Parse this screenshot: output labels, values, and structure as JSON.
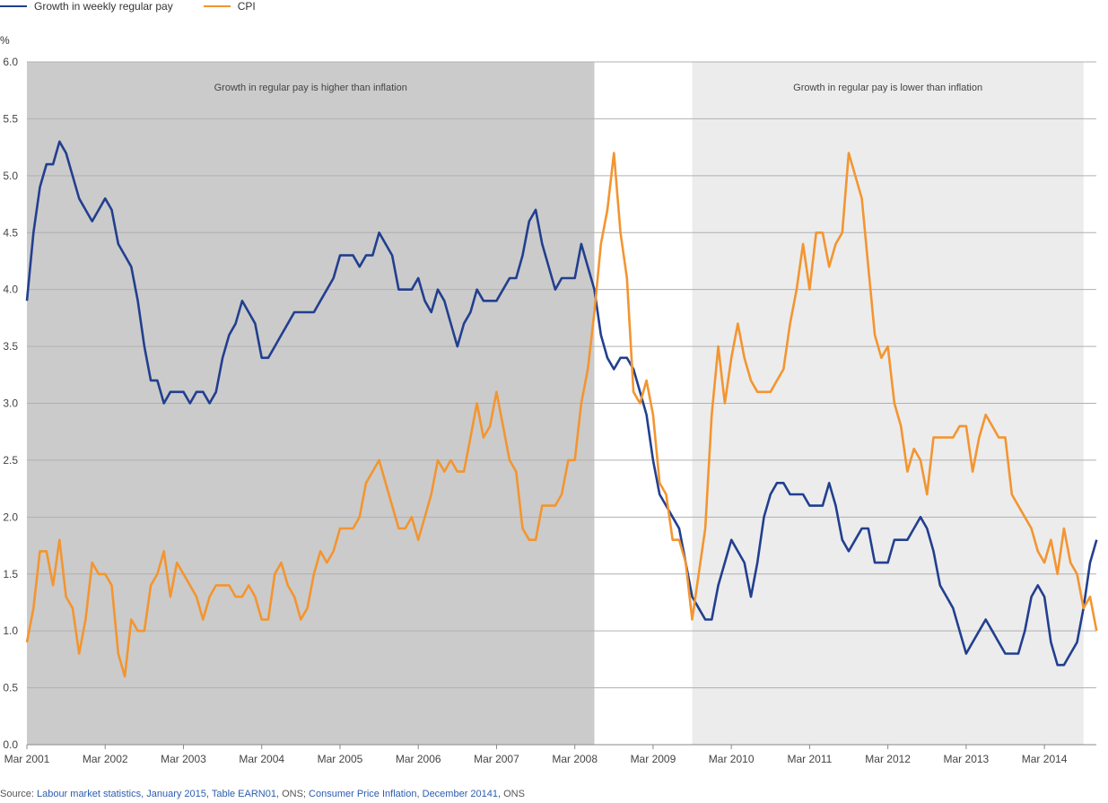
{
  "chart_data": {
    "type": "line",
    "title": "",
    "ylabel": "%",
    "xlabel": "",
    "ylim": [
      0,
      6
    ],
    "yticks": [
      "0.0",
      "0.5",
      "1.0",
      "1.5",
      "2.0",
      "2.5",
      "3.0",
      "3.5",
      "4.0",
      "4.5",
      "5.0",
      "5.5",
      "6.0"
    ],
    "x_start": "Mar 2001",
    "frequency": "monthly",
    "xticks": [
      "Mar 2001",
      "Mar 2002",
      "Mar 2003",
      "Mar 2004",
      "Mar 2005",
      "Mar 2006",
      "Mar 2007",
      "Mar 2008",
      "Mar 2009",
      "Mar 2010",
      "Mar 2011",
      "Mar 2012",
      "Mar 2013",
      "Mar 2014"
    ],
    "grid": true,
    "legend_position": "top-left",
    "series": [
      {
        "name": "Growth in weekly regular pay",
        "color": "#223f8f",
        "values": [
          3.9,
          4.5,
          4.9,
          5.1,
          5.1,
          5.3,
          5.2,
          5.0,
          4.8,
          4.7,
          4.6,
          4.7,
          4.8,
          4.7,
          4.4,
          4.3,
          4.2,
          3.9,
          3.5,
          3.2,
          3.2,
          3.0,
          3.1,
          3.1,
          3.1,
          3.0,
          3.1,
          3.1,
          3.0,
          3.1,
          3.4,
          3.6,
          3.7,
          3.9,
          3.8,
          3.7,
          3.4,
          3.4,
          3.5,
          3.6,
          3.7,
          3.8,
          3.8,
          3.8,
          3.8,
          3.9,
          4.0,
          4.1,
          4.3,
          4.3,
          4.3,
          4.2,
          4.3,
          4.3,
          4.5,
          4.4,
          4.3,
          4.0,
          4.0,
          4.0,
          4.1,
          3.9,
          3.8,
          4.0,
          3.9,
          3.7,
          3.5,
          3.7,
          3.8,
          4.0,
          3.9,
          3.9,
          3.9,
          4.0,
          4.1,
          4.1,
          4.3,
          4.6,
          4.7,
          4.4,
          4.2,
          4.0,
          4.1,
          4.1,
          4.1,
          4.4,
          4.2,
          4.0,
          3.6,
          3.4,
          3.3,
          3.4,
          3.4,
          3.3,
          3.1,
          2.9,
          2.5,
          2.2,
          2.1,
          2.0,
          1.9,
          1.6,
          1.3,
          1.2,
          1.1,
          1.1,
          1.4,
          1.6,
          1.8,
          1.7,
          1.6,
          1.3,
          1.6,
          2.0,
          2.2,
          2.3,
          2.3,
          2.2,
          2.2,
          2.2,
          2.1,
          2.1,
          2.1,
          2.3,
          2.1,
          1.8,
          1.7,
          1.8,
          1.9,
          1.9,
          1.6,
          1.6,
          1.6,
          1.8,
          1.8,
          1.8,
          1.9,
          2.0,
          1.9,
          1.7,
          1.4,
          1.3,
          1.2,
          1.0,
          0.8,
          0.9,
          1.0,
          1.1,
          1.0,
          0.9,
          0.8,
          0.8,
          0.8,
          1.0,
          1.3,
          1.4,
          1.3,
          0.9,
          0.7,
          0.7,
          0.8,
          0.9,
          1.2,
          1.6,
          1.8
        ]
      },
      {
        "name": "CPI",
        "color": "#f39530",
        "values": [
          0.9,
          1.2,
          1.7,
          1.7,
          1.4,
          1.8,
          1.3,
          1.2,
          0.8,
          1.1,
          1.6,
          1.5,
          1.5,
          1.4,
          0.8,
          0.6,
          1.1,
          1.0,
          1.0,
          1.4,
          1.5,
          1.7,
          1.3,
          1.6,
          1.5,
          1.4,
          1.3,
          1.1,
          1.3,
          1.4,
          1.4,
          1.4,
          1.3,
          1.3,
          1.4,
          1.3,
          1.1,
          1.1,
          1.5,
          1.6,
          1.4,
          1.3,
          1.1,
          1.2,
          1.5,
          1.7,
          1.6,
          1.7,
          1.9,
          1.9,
          1.9,
          2.0,
          2.3,
          2.4,
          2.5,
          2.3,
          2.1,
          1.9,
          1.9,
          2.0,
          1.8,
          2.0,
          2.2,
          2.5,
          2.4,
          2.5,
          2.4,
          2.4,
          2.7,
          3.0,
          2.7,
          2.8,
          3.1,
          2.8,
          2.5,
          2.4,
          1.9,
          1.8,
          1.8,
          2.1,
          2.1,
          2.1,
          2.2,
          2.5,
          2.5,
          3.0,
          3.3,
          3.8,
          4.4,
          4.7,
          5.2,
          4.5,
          4.1,
          3.1,
          3.0,
          3.2,
          2.9,
          2.3,
          2.2,
          1.8,
          1.8,
          1.6,
          1.1,
          1.5,
          1.9,
          2.9,
          3.5,
          3.0,
          3.4,
          3.7,
          3.4,
          3.2,
          3.1,
          3.1,
          3.1,
          3.2,
          3.3,
          3.7,
          4.0,
          4.4,
          4.0,
          4.5,
          4.5,
          4.2,
          4.4,
          4.5,
          5.2,
          5.0,
          4.8,
          4.2,
          3.6,
          3.4,
          3.5,
          3.0,
          2.8,
          2.4,
          2.6,
          2.5,
          2.2,
          2.7,
          2.7,
          2.7,
          2.7,
          2.8,
          2.8,
          2.4,
          2.7,
          2.9,
          2.8,
          2.7,
          2.7,
          2.2,
          2.1,
          2.0,
          1.9,
          1.7,
          1.6,
          1.8,
          1.5,
          1.9,
          1.6,
          1.5,
          1.2,
          1.3,
          1.0
        ]
      }
    ],
    "shaded_regions": [
      {
        "label": "Growth in regular pay is higher than inflation",
        "start_month_index": 0,
        "end_month_index": 87,
        "color": "#cbcbcb"
      },
      {
        "label": "Growth in regular pay is lower than inflation",
        "start_month_index": 102,
        "end_month_index": 162,
        "color": "#ececec"
      }
    ]
  },
  "source": {
    "prefix": "Source: ",
    "link1": "Labour market statistics, January 2015",
    "sep1": ", ",
    "link2": "Table EARN01",
    "sep2": ", ONS; ",
    "link3": "Consumer Price Inflation",
    "sep3": ", ",
    "link4": "December 20141",
    "suffix": ", ONS"
  }
}
